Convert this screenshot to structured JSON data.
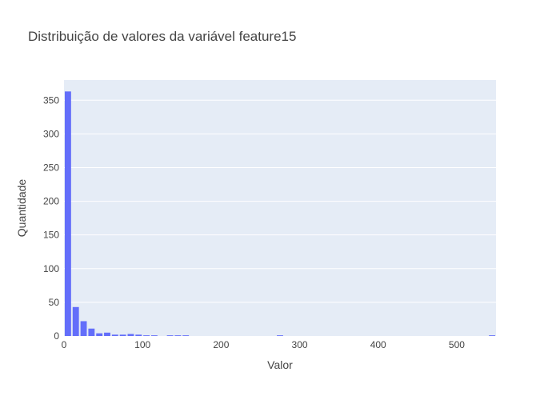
{
  "chart_data": {
    "type": "bar",
    "title": "Distribuição de valores da variável feature15",
    "xlabel": "Valor",
    "ylabel": "Quantidade",
    "xlim": [
      0,
      550
    ],
    "ylim": [
      0,
      380
    ],
    "bin_width": 10,
    "xticks": [
      0,
      100,
      200,
      300,
      400,
      500
    ],
    "yticks": [
      0,
      50,
      100,
      150,
      200,
      250,
      300,
      350
    ],
    "bins": [
      {
        "x": 0,
        "count": 363
      },
      {
        "x": 10,
        "count": 43
      },
      {
        "x": 20,
        "count": 22
      },
      {
        "x": 30,
        "count": 11
      },
      {
        "x": 40,
        "count": 4
      },
      {
        "x": 50,
        "count": 5
      },
      {
        "x": 60,
        "count": 2
      },
      {
        "x": 70,
        "count": 2
      },
      {
        "x": 80,
        "count": 3
      },
      {
        "x": 90,
        "count": 2
      },
      {
        "x": 100,
        "count": 1
      },
      {
        "x": 110,
        "count": 1
      },
      {
        "x": 130,
        "count": 1
      },
      {
        "x": 140,
        "count": 1
      },
      {
        "x": 150,
        "count": 1
      },
      {
        "x": 270,
        "count": 1
      },
      {
        "x": 540,
        "count": 1
      }
    ],
    "bar_color": "#636efa",
    "plot_bg": "#e5ecf6",
    "grid": true
  }
}
